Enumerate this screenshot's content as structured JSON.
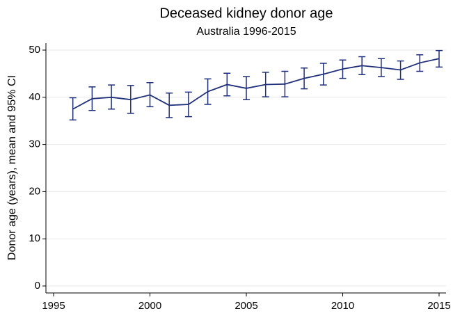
{
  "chart_data": {
    "type": "line",
    "title": "Deceased kidney donor age",
    "subtitle": "Australia 1996-2015",
    "y_label": "Donor age (years), mean and 95% CI",
    "x": [
      1996,
      1997,
      1998,
      1999,
      2000,
      2001,
      2002,
      2003,
      2004,
      2005,
      2006,
      2007,
      2008,
      2009,
      2010,
      2011,
      2012,
      2013,
      2014,
      2015
    ],
    "series": [
      {
        "color": "#1f2f7a",
        "values": [
          37.5,
          39.7,
          40.0,
          39.5,
          40.5,
          38.3,
          38.5,
          41.2,
          42.7,
          41.9,
          42.7,
          42.8,
          44.0,
          44.9,
          46.0,
          46.7,
          46.3,
          45.8,
          47.3,
          48.2
        ],
        "lower": [
          35.2,
          37.2,
          37.5,
          36.6,
          38.0,
          35.7,
          35.9,
          38.5,
          40.3,
          39.5,
          40.1,
          40.1,
          41.8,
          42.6,
          44.0,
          44.8,
          44.4,
          43.8,
          45.5,
          46.4
        ],
        "upper": [
          39.9,
          42.2,
          42.6,
          42.5,
          43.1,
          40.9,
          41.1,
          43.9,
          45.1,
          44.4,
          45.3,
          45.5,
          46.2,
          47.2,
          47.9,
          48.6,
          48.2,
          47.7,
          49.0,
          49.9
        ]
      }
    ],
    "xlim": [
      1995,
      2015
    ],
    "xticks": [
      1995,
      2000,
      2005,
      2010,
      2015
    ],
    "ylim": [
      0,
      50
    ],
    "yticks": [
      0,
      10,
      20,
      30,
      40,
      50
    ],
    "grid": true
  }
}
